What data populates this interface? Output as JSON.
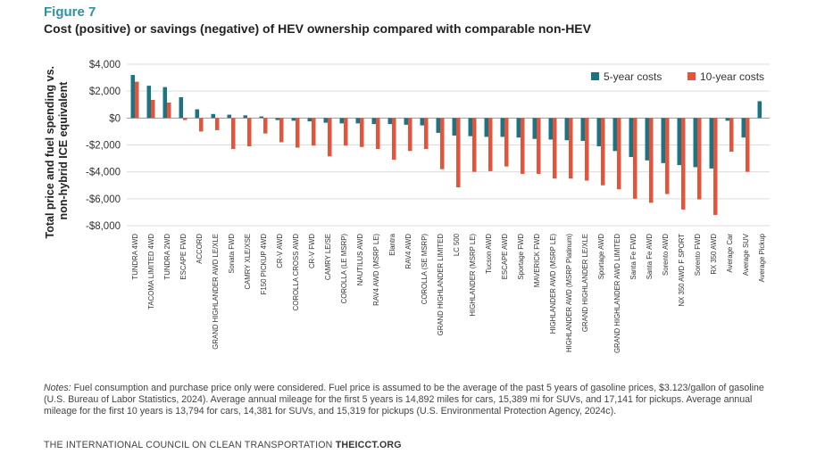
{
  "figure_label": "Figure 7",
  "figure_title": "Cost (positive) or savings (negative) of HEV ownership compared with comparable non-HEV",
  "notes_label": "Notes:",
  "notes_text": " Fuel consumption and purchase price only were considered. Fuel price is assumed to be the average of the past 5 years of gasoline prices, $3.123/gallon of gasoline (U.S. Bureau of Labor Statistics, 2024). Average annual mileage for the first 5 years is 14,892 miles for cars, 15,389 mi for SUVs, and 17,141 for pickups. Average annual mileage for the first 10 years is 13,794 for cars, 14,381 for SUVs, and 15,319 for pickups (U.S. Environmental Protection Agency, 2024c).",
  "footer_org": "THE INTERNATIONAL COUNCIL ON CLEAN TRANSPORTATION",
  "footer_site": "THEICCT.ORG",
  "chart_data": {
    "type": "bar",
    "ylabel_lines": [
      "Total price and fuel spending vs.",
      "non-hybrid ICE equivalent"
    ],
    "xlabel": "",
    "ylim": [
      -8000,
      4000
    ],
    "yticks": [
      4000,
      2000,
      0,
      -2000,
      -4000,
      -6000,
      -8000
    ],
    "ytick_labels": [
      "$4,000",
      "$2,000",
      "$0",
      "-$2,000",
      "-$4,000",
      "-$6,000",
      "-$8,000"
    ],
    "legend_position": "top-right",
    "categories": [
      "TUNDRA 4WD",
      "TACOMA LIMITED 4WD",
      "TUNDRA 2WD",
      "ESCAPE FWD",
      "ACCORD",
      "GRAND HIGHLANDER AWD LE/XLE",
      "Sonata FWD",
      "CAMRY XLE/XSE",
      "F150 PICKUP 4WD",
      "CR-V AWD",
      "COROLLA CROSS AWD",
      "CR-V FWD",
      "CAMRY LE/SE",
      "COROLLA (LE MSRP)",
      "NAUTILUS AWD",
      "RAV4 AWD (MSRP LE)",
      "Elantra",
      "RAV4 AWD",
      "COROLLA (SE MSRP)",
      "GRAND HIGHLANDER LIMITED",
      "LC 500",
      "HIGHLANDER (MSRP LE)",
      "Tucson AWD",
      "ESCAPE AWD",
      "Sportage FWD",
      "MAVERICK FWD",
      "HIGHLANDER AWD (MSRP LE)",
      "HIGHLANDER AWD (MSRP Platinum)",
      "GRAND HIGHLANDER LE/XLE",
      "Sportage AWD",
      "GRAND HIGHLANDER AWD LIMITED",
      "Santa Fe FWD",
      "Santa Fe AWD",
      "Sorento AWD",
      "NX 350 AWD F SPORT",
      "Sorento FWD",
      "RX 350 AWD",
      "Average Car",
      "Average SUV",
      "Average Pickup"
    ],
    "series": [
      {
        "name": "5-year costs",
        "color": "#1c7482",
        "values": [
          3200,
          2400,
          2300,
          1550,
          650,
          300,
          250,
          200,
          120,
          -150,
          -200,
          -250,
          -350,
          -400,
          -400,
          -450,
          -450,
          -500,
          -550,
          -1100,
          -1300,
          -1350,
          -1400,
          -1400,
          -1450,
          -1550,
          -1600,
          -1650,
          -1700,
          -2100,
          -2450,
          -2900,
          -3150,
          -3350,
          -3500,
          -3650,
          -3750,
          -200,
          -1450,
          1250
        ]
      },
      {
        "name": "10-year costs",
        "color": "#e5533a",
        "values": [
          2700,
          1350,
          1150,
          -150,
          -1000,
          -900,
          -2300,
          -2100,
          -1150,
          -1800,
          -2200,
          -2050,
          -2850,
          -2050,
          -2150,
          -2300,
          -3100,
          -2450,
          -2300,
          -3800,
          -5150,
          -4000,
          -3950,
          -3600,
          -4150,
          -4150,
          -4500,
          -4500,
          -4650,
          -5000,
          -5300,
          -6000,
          -6300,
          -5650,
          -6800,
          -6050,
          -7200,
          -2500,
          -4000,
          0
        ]
      }
    ]
  }
}
